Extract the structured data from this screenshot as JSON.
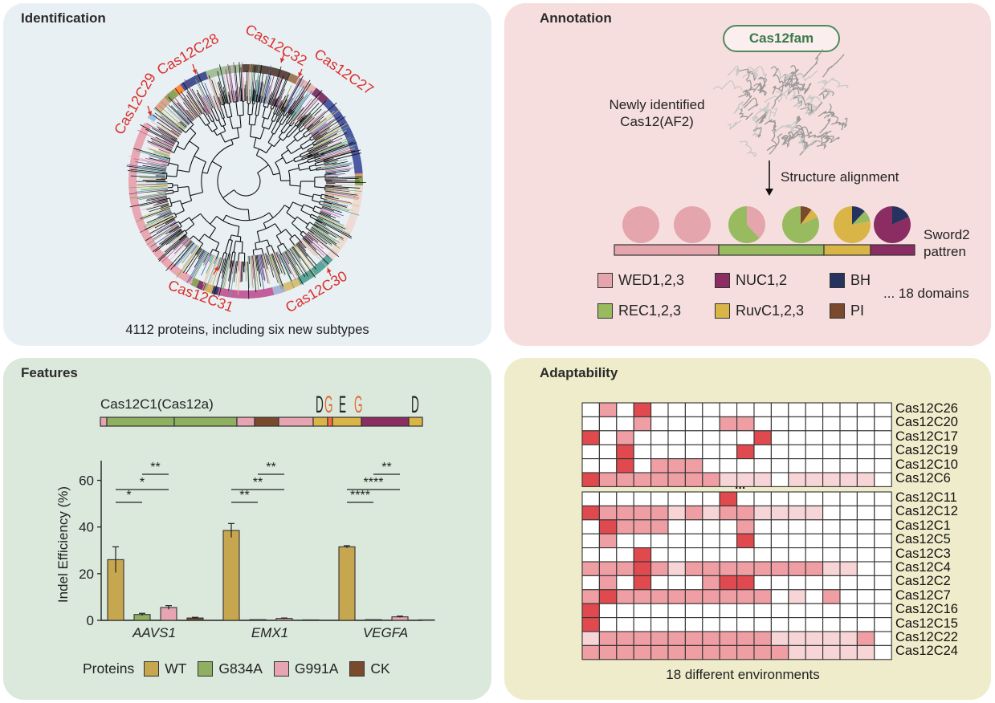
{
  "identification": {
    "title": "Identification",
    "caption": "4112 proteins, including six new subtypes",
    "subtypes": [
      "Cas12C29",
      "Cas12C28",
      "Cas12C32",
      "Cas12C27",
      "Cas12C31",
      "Cas12C30"
    ],
    "label_color": "#d9302c"
  },
  "annotation": {
    "title": "Annotation",
    "family": "Cas12fam",
    "structure_label": "Newly identified\nCas12(AF2)",
    "step_label": "Structure alignment",
    "pattern_label": "Sword2\npattren",
    "legend": [
      {
        "label": "WED1,2,3",
        "color": "#e4a5ad"
      },
      {
        "label": "NUC1,2",
        "color": "#8b2d62"
      },
      {
        "label": "BH",
        "color": "#25335e"
      },
      {
        "label": "REC1,2,3",
        "color": "#98bb5f"
      },
      {
        "label": "RuvC1,2,3",
        "color": "#d9b548"
      },
      {
        "label": "PI",
        "color": "#7a4a2d"
      }
    ],
    "more_label": "... 18 domains"
  },
  "features": {
    "title": "Features",
    "construct_label": "Cas12C1(Cas12a)",
    "logo_letters": [
      "D",
      "G",
      "E",
      "G",
      "D"
    ],
    "legend_title": "Proteins",
    "protein_legend": [
      {
        "label": "WT",
        "color": "#c7a650"
      },
      {
        "label": "G834A",
        "color": "#8fb061"
      },
      {
        "label": "G991A",
        "color": "#e6a5b1"
      },
      {
        "label": "CK",
        "color": "#7a4a2d"
      }
    ]
  },
  "chart_data": {
    "type": "bar",
    "ylabel": "Indel Efficiency (%)",
    "ylim": [
      0,
      65
    ],
    "yticks": [
      0,
      20,
      40,
      60
    ],
    "categories": [
      "AAVS1",
      "EMX1",
      "VEGFA"
    ],
    "series": [
      {
        "name": "WT",
        "values": [
          26,
          38.5,
          31.5
        ],
        "errors": [
          5.5,
          3.0,
          0.5
        ]
      },
      {
        "name": "G834A",
        "values": [
          2.5,
          0.3,
          0.3
        ],
        "errors": [
          0.5,
          0.1,
          0.1
        ]
      },
      {
        "name": "G991A",
        "values": [
          5.5,
          0.8,
          1.5
        ],
        "errors": [
          0.8,
          0.2,
          0.3
        ]
      },
      {
        "name": "CK",
        "values": [
          1.0,
          0.2,
          0.2
        ],
        "errors": [
          0.3,
          0.1,
          0.1
        ]
      }
    ],
    "significance": [
      {
        "group": "AAVS1",
        "compare": [
          "WT",
          "G834A"
        ],
        "label": "*"
      },
      {
        "group": "AAVS1",
        "compare": [
          "WT",
          "G991A"
        ],
        "label": "*"
      },
      {
        "group": "AAVS1",
        "compare": [
          "G834A",
          "G991A"
        ],
        "label": "**"
      },
      {
        "group": "EMX1",
        "compare": [
          "WT",
          "G834A"
        ],
        "label": "**"
      },
      {
        "group": "EMX1",
        "compare": [
          "WT",
          "G991A"
        ],
        "label": "**"
      },
      {
        "group": "EMX1",
        "compare": [
          "G834A",
          "G991A"
        ],
        "label": "**"
      },
      {
        "group": "VEGFA",
        "compare": [
          "WT",
          "G834A"
        ],
        "label": "****"
      },
      {
        "group": "VEGFA",
        "compare": [
          "WT",
          "G991A"
        ],
        "label": "****"
      },
      {
        "group": "VEGFA",
        "compare": [
          "G834A",
          "G991A"
        ],
        "label": "**"
      }
    ]
  },
  "adaptability": {
    "title": "Adaptability",
    "caption": "18 different environments",
    "ellipsis": "...",
    "top_rows": [
      "Cas12C26",
      "Cas12C20",
      "Cas12C17",
      "Cas12C19",
      "Cas12C10",
      "Cas12C6"
    ],
    "bottom_rows": [
      "Cas12C11",
      "Cas12C12",
      "Cas12C1",
      "Cas12C5",
      "Cas12C3",
      "Cas12C4",
      "Cas12C2",
      "Cas12C7",
      "Cas12C16",
      "Cas12C15",
      "Cas12C22",
      "Cas12C24"
    ],
    "levels_colors": [
      "#ffffff",
      "#f7d5d7",
      "#ef9ea3",
      "#e04a4f"
    ],
    "top_levels": [
      [
        0,
        2,
        0,
        3,
        0,
        0,
        0,
        0,
        0,
        0,
        0,
        0,
        0,
        0,
        0,
        0,
        0,
        0
      ],
      [
        0,
        0,
        0,
        2,
        0,
        0,
        0,
        0,
        2,
        2,
        0,
        0,
        0,
        0,
        0,
        0,
        0,
        0
      ],
      [
        3,
        0,
        2,
        0,
        0,
        0,
        0,
        0,
        0,
        0,
        3,
        0,
        0,
        0,
        0,
        0,
        0,
        0
      ],
      [
        0,
        0,
        3,
        0,
        0,
        0,
        0,
        0,
        0,
        3,
        0,
        0,
        0,
        0,
        0,
        0,
        0,
        0
      ],
      [
        0,
        0,
        3,
        0,
        2,
        2,
        2,
        0,
        0,
        0,
        0,
        0,
        0,
        0,
        0,
        0,
        0,
        0
      ],
      [
        3,
        2,
        2,
        2,
        2,
        2,
        2,
        2,
        1,
        1,
        1,
        0,
        1,
        1,
        1,
        1,
        1,
        0
      ]
    ],
    "bottom_levels": [
      [
        0,
        0,
        0,
        0,
        0,
        0,
        0,
        0,
        3,
        0,
        0,
        0,
        0,
        0,
        0,
        0,
        0,
        0
      ],
      [
        3,
        2,
        2,
        2,
        2,
        1,
        2,
        1,
        2,
        2,
        1,
        1,
        1,
        1,
        0,
        0,
        0,
        0
      ],
      [
        0,
        3,
        2,
        2,
        2,
        0,
        0,
        0,
        0,
        2,
        0,
        0,
        0,
        0,
        0,
        0,
        0,
        0
      ],
      [
        0,
        2,
        0,
        0,
        0,
        0,
        0,
        0,
        0,
        3,
        0,
        0,
        0,
        0,
        0,
        0,
        0,
        0
      ],
      [
        0,
        0,
        0,
        3,
        0,
        0,
        0,
        0,
        0,
        0,
        0,
        0,
        0,
        0,
        0,
        0,
        0,
        0
      ],
      [
        2,
        2,
        2,
        3,
        2,
        1,
        2,
        2,
        2,
        2,
        2,
        2,
        2,
        2,
        1,
        1,
        0,
        0
      ],
      [
        0,
        2,
        0,
        3,
        0,
        0,
        0,
        2,
        3,
        3,
        0,
        0,
        0,
        0,
        0,
        0,
        0,
        0
      ],
      [
        2,
        3,
        2,
        2,
        2,
        2,
        2,
        2,
        2,
        2,
        2,
        0,
        1,
        0,
        2,
        0,
        0,
        0
      ],
      [
        3,
        0,
        0,
        0,
        0,
        0,
        0,
        0,
        0,
        0,
        0,
        0,
        0,
        0,
        0,
        0,
        0,
        0
      ],
      [
        3,
        0,
        0,
        0,
        0,
        0,
        0,
        0,
        0,
        0,
        0,
        0,
        0,
        0,
        0,
        0,
        0,
        0
      ],
      [
        1,
        2,
        2,
        2,
        2,
        2,
        2,
        2,
        2,
        2,
        2,
        1,
        1,
        1,
        1,
        1,
        2,
        0
      ],
      [
        2,
        2,
        2,
        2,
        2,
        2,
        2,
        2,
        2,
        2,
        2,
        2,
        1,
        1,
        1,
        1,
        1,
        0
      ]
    ]
  }
}
